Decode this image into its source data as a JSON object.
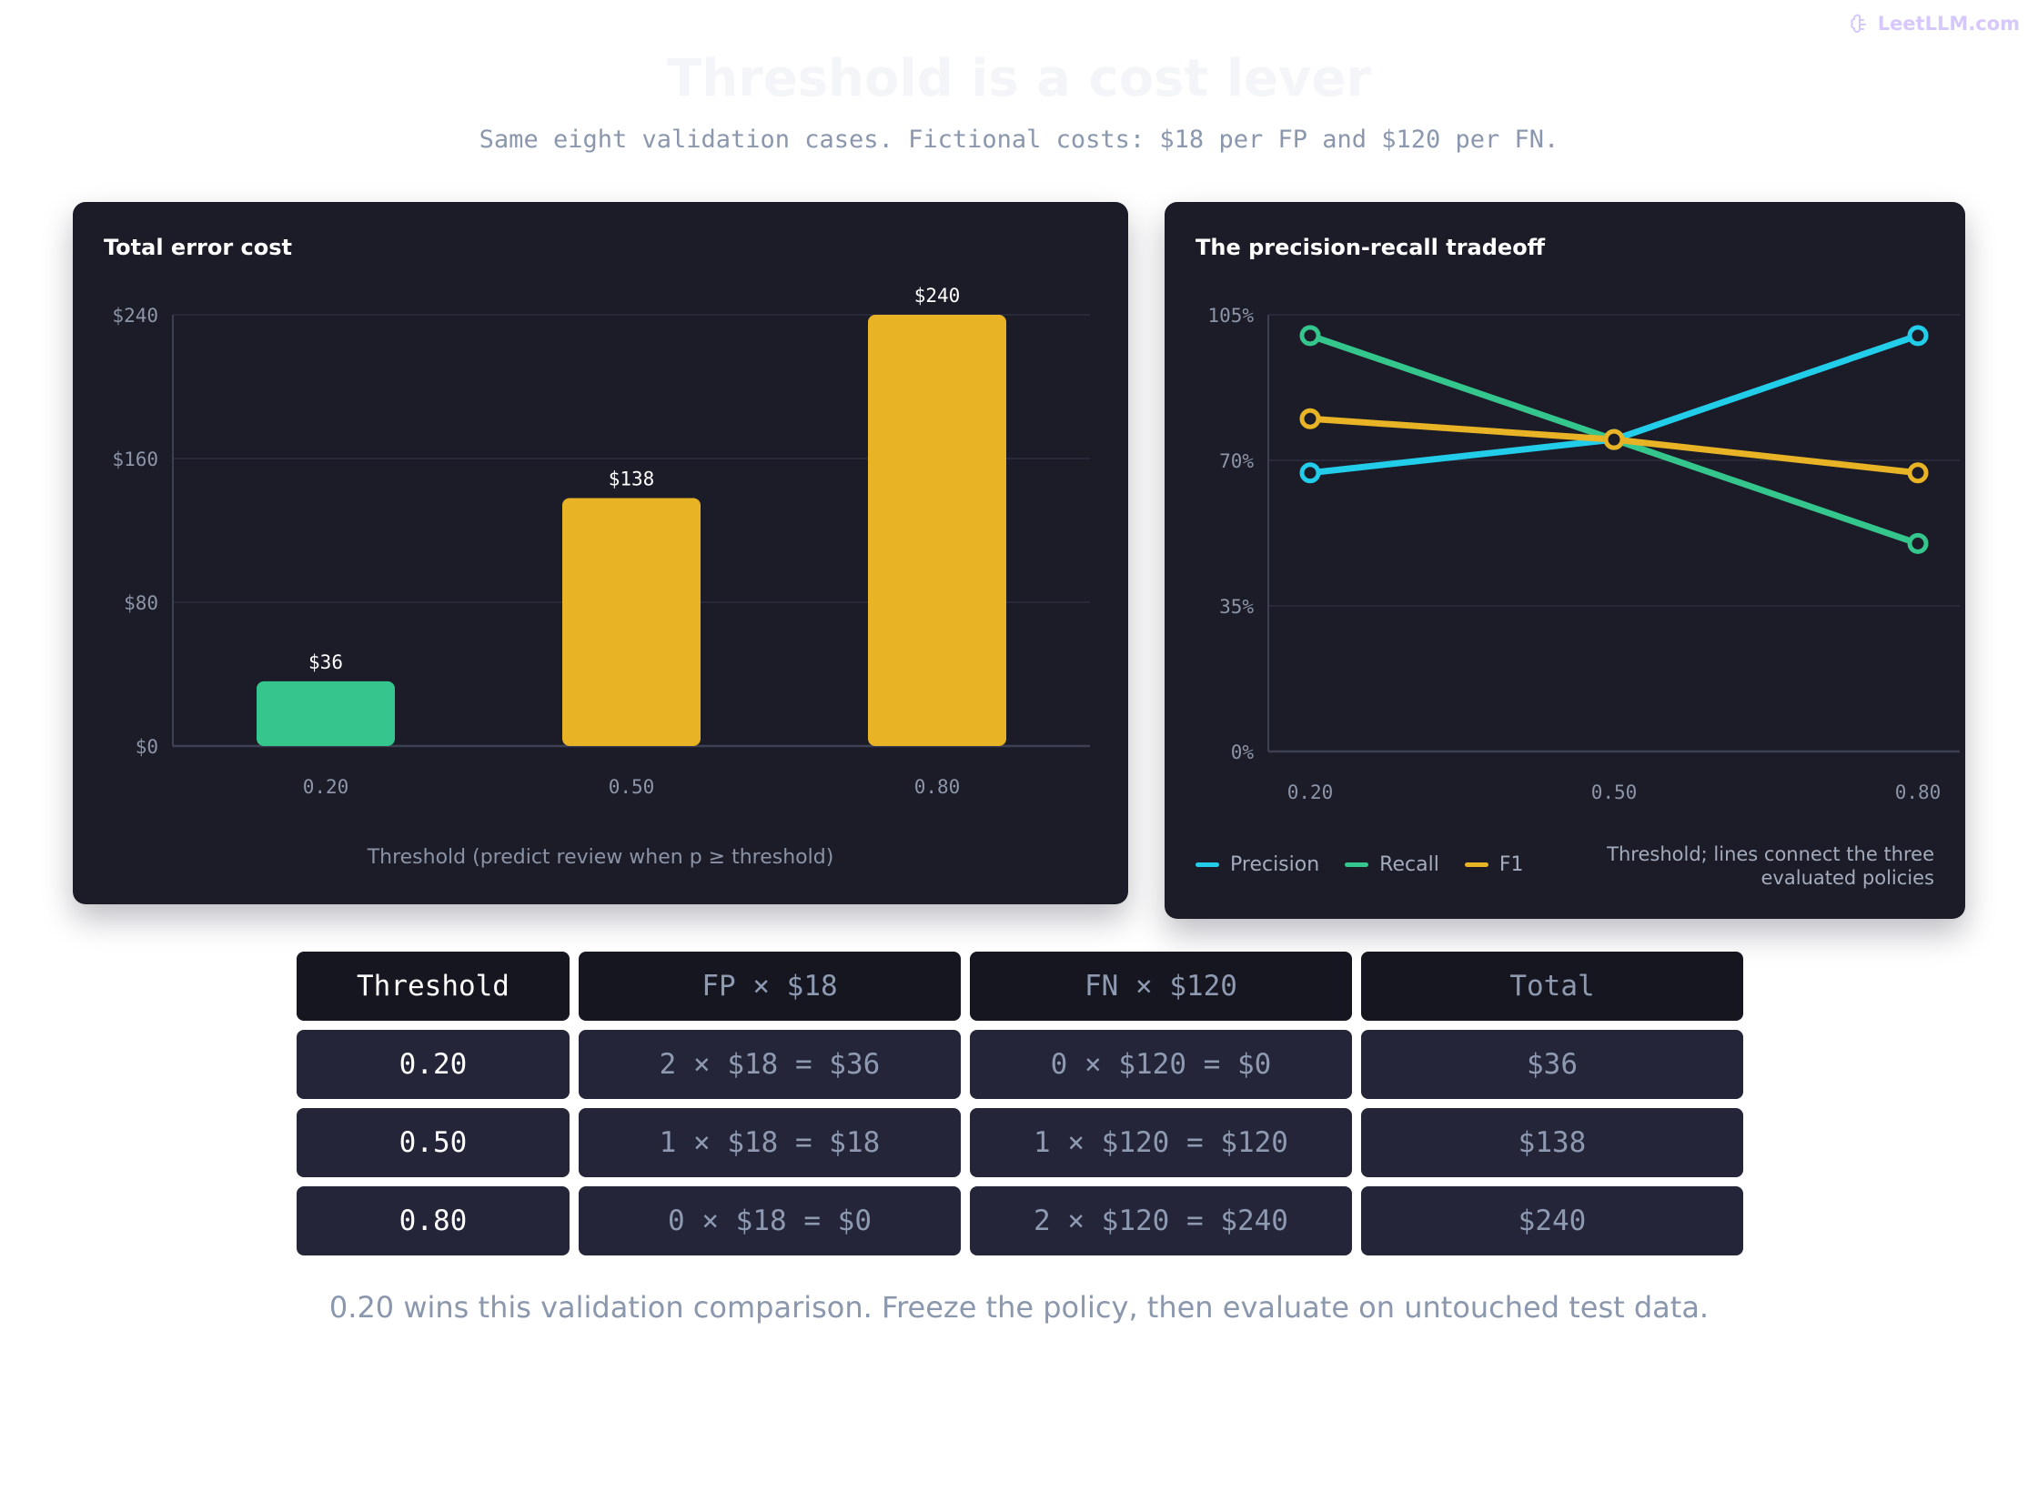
{
  "brand": {
    "label": "LeetLLM.com",
    "icon": "brain-icon",
    "color": "#d7c8fb"
  },
  "title": "Threshold is a cost lever",
  "subtitle": "Same eight validation cases. Fictional costs: $18 per FP and $120 per FN.",
  "colors": {
    "green": "#34c68c",
    "yellow": "#e8b325",
    "cyan": "#22cdea",
    "panel": "#1b1c27"
  },
  "chart_data": [
    {
      "type": "bar",
      "title": "Total error cost",
      "categories": [
        "0.20",
        "0.50",
        "0.80"
      ],
      "values": [
        36,
        138,
        240
      ],
      "value_labels": [
        "$36",
        "$138",
        "$240"
      ],
      "bar_colors": [
        "#34c68c",
        "#e8b325",
        "#e8b325"
      ],
      "xlabel": "Threshold (predict review when p ≥ threshold)",
      "ylabel": "",
      "ylim": [
        0,
        240
      ],
      "yticks": [
        0,
        80,
        160,
        240
      ],
      "ytick_labels": [
        "$0",
        "$80",
        "$160",
        "$240"
      ],
      "grid": true
    },
    {
      "type": "line",
      "title": "The precision-recall tradeoff",
      "x": [
        "0.20",
        "0.50",
        "0.80"
      ],
      "series": [
        {
          "name": "Precision",
          "color": "#22cdea",
          "values": [
            67,
            75,
            100
          ]
        },
        {
          "name": "Recall",
          "color": "#34c68c",
          "values": [
            100,
            75,
            50
          ]
        },
        {
          "name": "F1",
          "color": "#e8b325",
          "values": [
            80,
            75,
            67
          ]
        }
      ],
      "xlabel": "Threshold; lines connect the three evaluated policies",
      "ylabel": "",
      "ylim": [
        0,
        105
      ],
      "yticks": [
        0,
        35,
        70,
        105
      ],
      "ytick_labels": [
        "0%",
        "35%",
        "70%",
        "105%"
      ],
      "grid": true,
      "legend": "bottom-left"
    }
  ],
  "table": {
    "headers": [
      "Threshold",
      "FP × $18",
      "FN × $120",
      "Total"
    ],
    "rows": [
      [
        "0.20",
        "2 × $18 = $36",
        "0 × $120 = $0",
        "$36"
      ],
      [
        "0.50",
        "1 × $18 = $18",
        "1 × $120 = $120",
        "$138"
      ],
      [
        "0.80",
        "0 × $18 = $0",
        "2 × $120 = $240",
        "$240"
      ]
    ]
  },
  "footnote": "0.20 wins this validation comparison. Freeze the policy, then evaluate on untouched test data."
}
